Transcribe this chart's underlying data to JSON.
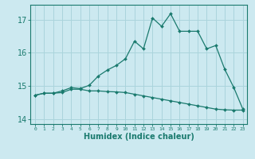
{
  "xlabel": "Humidex (Indice chaleur)",
  "ylabel": "",
  "background_color": "#cce9f0",
  "grid_color": "#aad4dc",
  "line_color": "#1a7a6e",
  "x_values": [
    0,
    1,
    2,
    3,
    4,
    5,
    6,
    7,
    8,
    9,
    10,
    11,
    12,
    13,
    14,
    15,
    16,
    17,
    18,
    19,
    20,
    21,
    22,
    23
  ],
  "line1_y": [
    14.72,
    14.78,
    14.78,
    14.8,
    14.9,
    14.9,
    14.85,
    14.85,
    14.83,
    14.82,
    14.8,
    14.75,
    14.7,
    14.65,
    14.6,
    14.55,
    14.5,
    14.45,
    14.4,
    14.35,
    14.3,
    14.28,
    14.27,
    14.27
  ],
  "line2_y": [
    14.72,
    14.78,
    14.78,
    14.85,
    14.95,
    14.92,
    15.02,
    15.3,
    15.48,
    15.62,
    15.82,
    16.35,
    16.12,
    17.05,
    16.8,
    17.18,
    16.65,
    16.65,
    16.65,
    16.12,
    16.22,
    15.5,
    14.95,
    14.3
  ],
  "ylim": [
    13.85,
    17.45
  ],
  "yticks": [
    14,
    15,
    16,
    17
  ],
  "xticks": [
    0,
    1,
    2,
    3,
    4,
    5,
    6,
    7,
    8,
    9,
    10,
    11,
    12,
    13,
    14,
    15,
    16,
    17,
    18,
    19,
    20,
    21,
    22,
    23
  ]
}
